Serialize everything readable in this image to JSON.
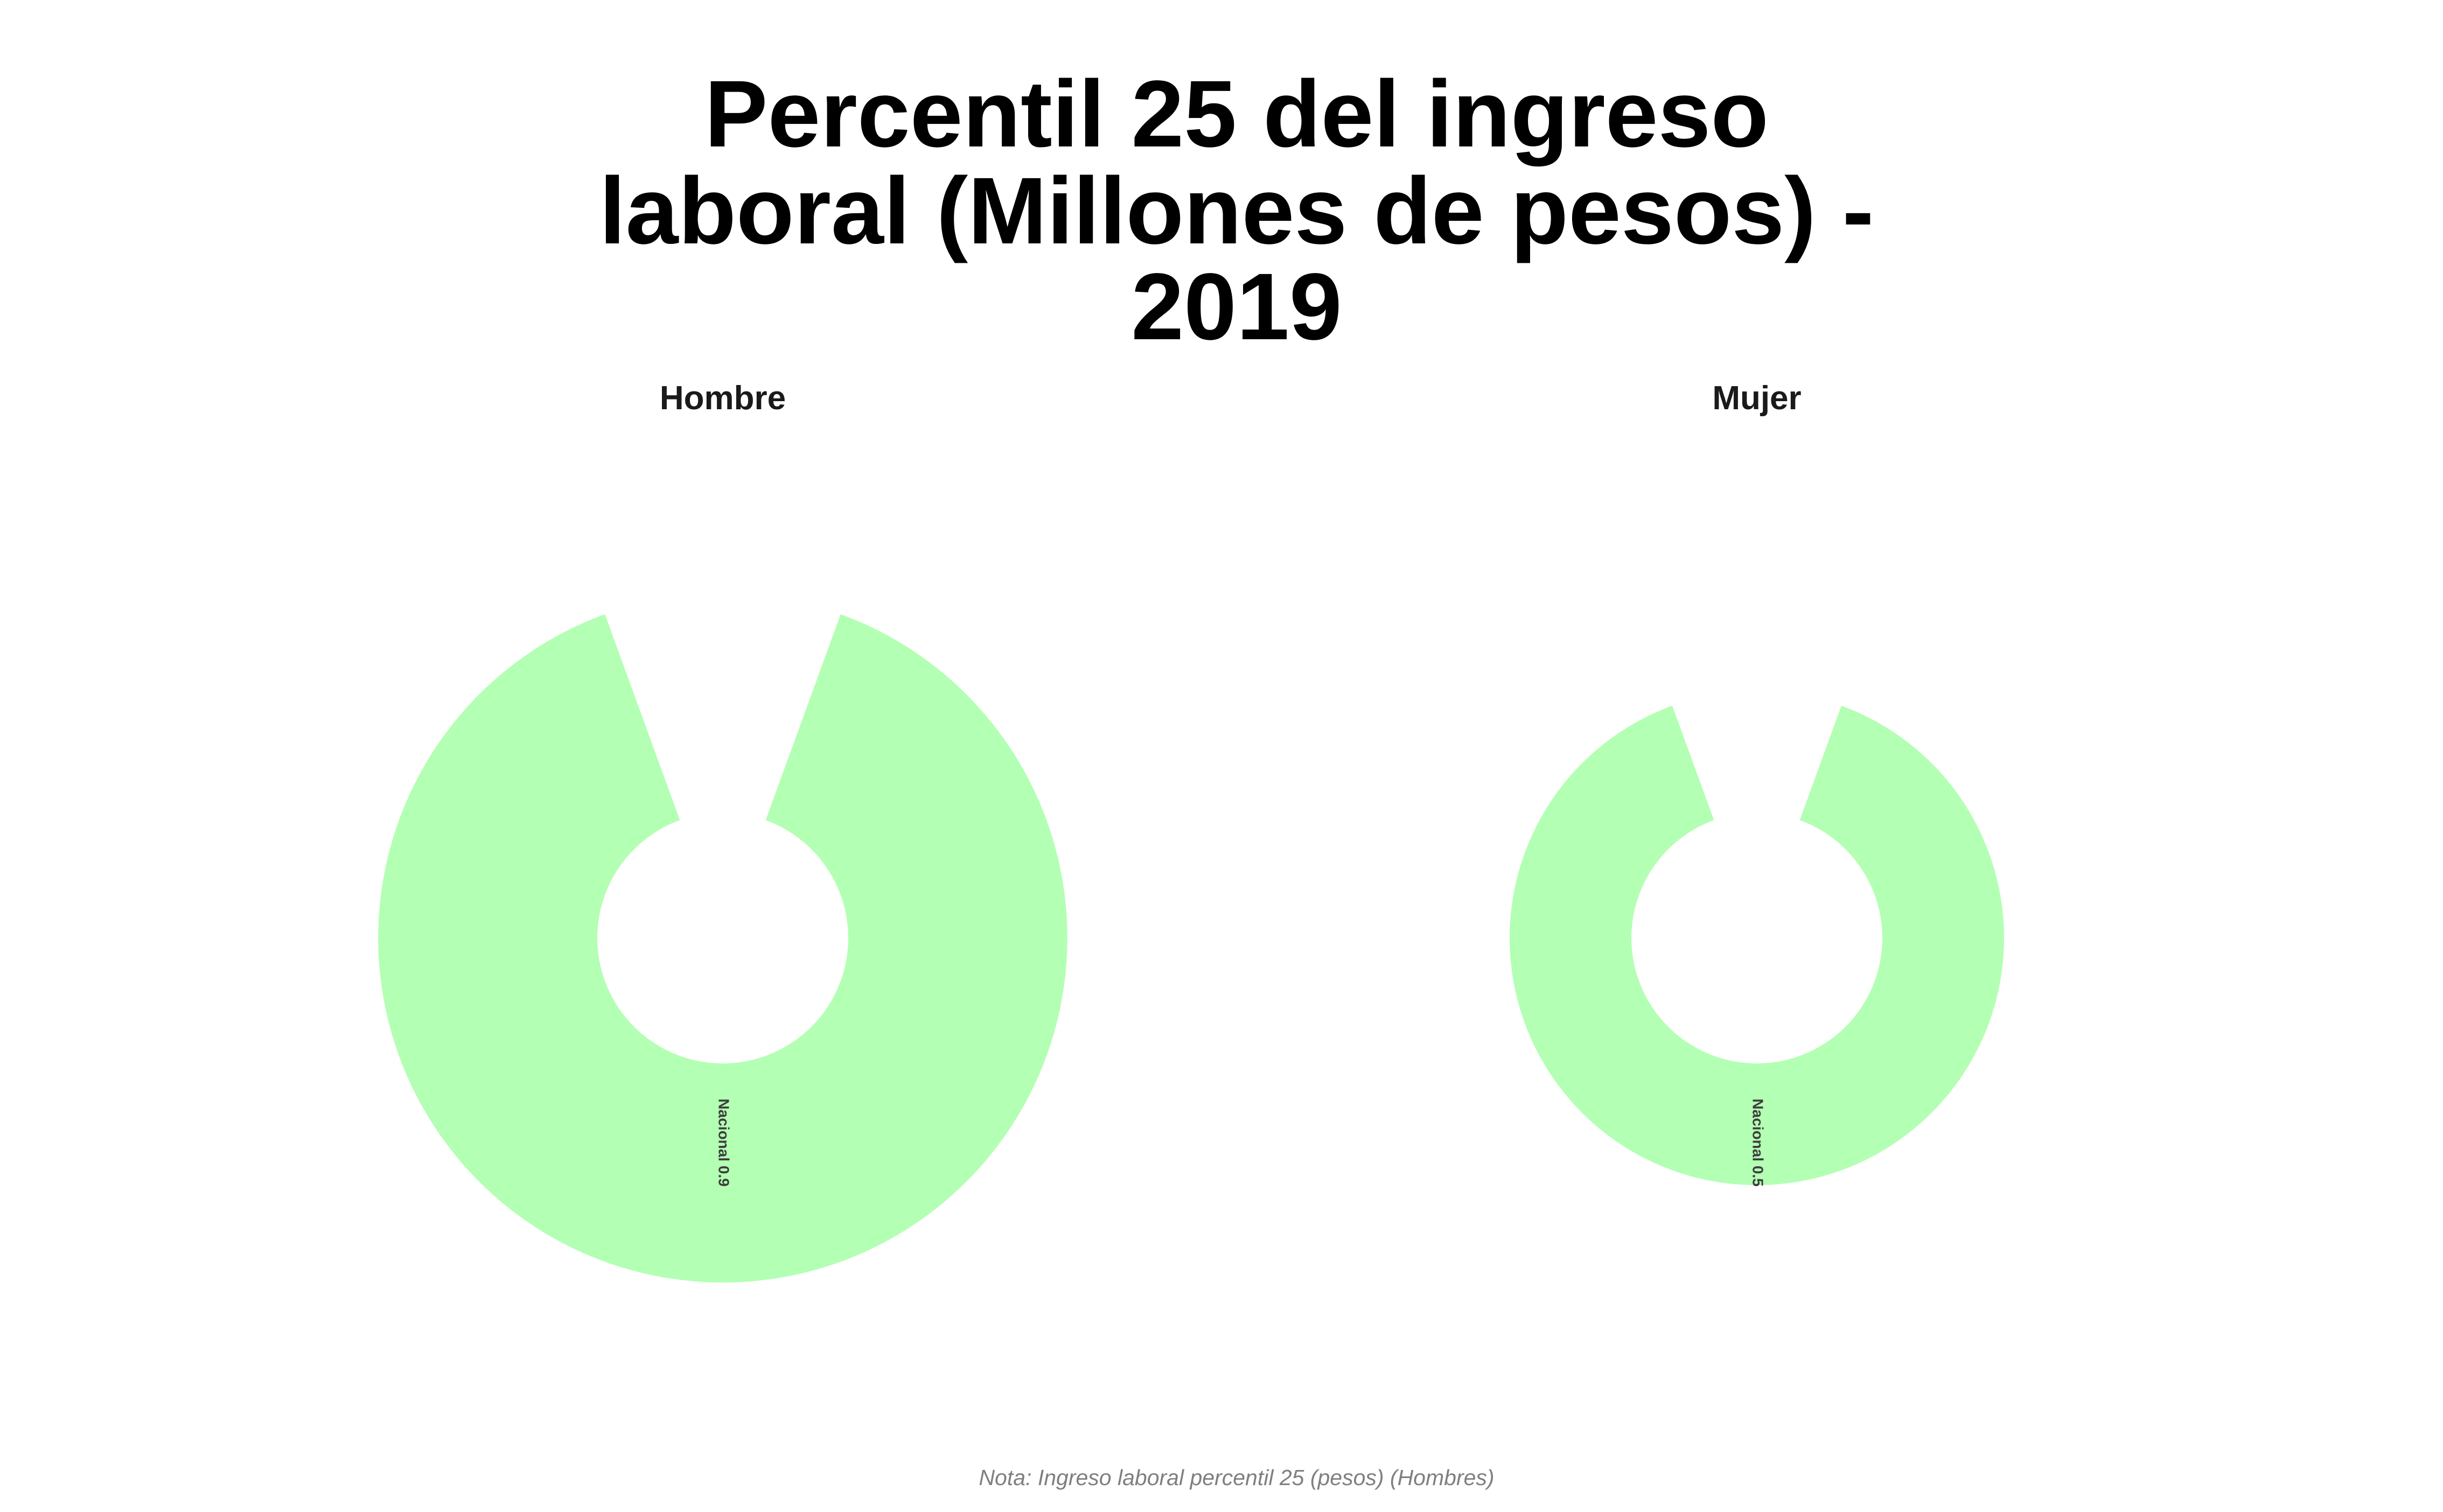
{
  "chart_data": {
    "type": "pie",
    "title_lines": [
      "Percentil 25 del ingreso",
      "laboral (Millones de pesos) -",
      "2019"
    ],
    "facets": [
      {
        "name": "Hombre",
        "slices": [
          {
            "category": "Nacional",
            "value": 0.9,
            "label": "Nacional 0.9"
          }
        ]
      },
      {
        "name": "Mujer",
        "slices": [
          {
            "category": "Nacional",
            "value": 0.5,
            "label": "Nacional 0.5"
          }
        ]
      }
    ],
    "colors": {
      "slice": "#b3ffb3"
    },
    "note": "Nota: Ingreso laboral percentil 25 (pesos) (Hombres)",
    "grid": false,
    "legend": "none"
  }
}
